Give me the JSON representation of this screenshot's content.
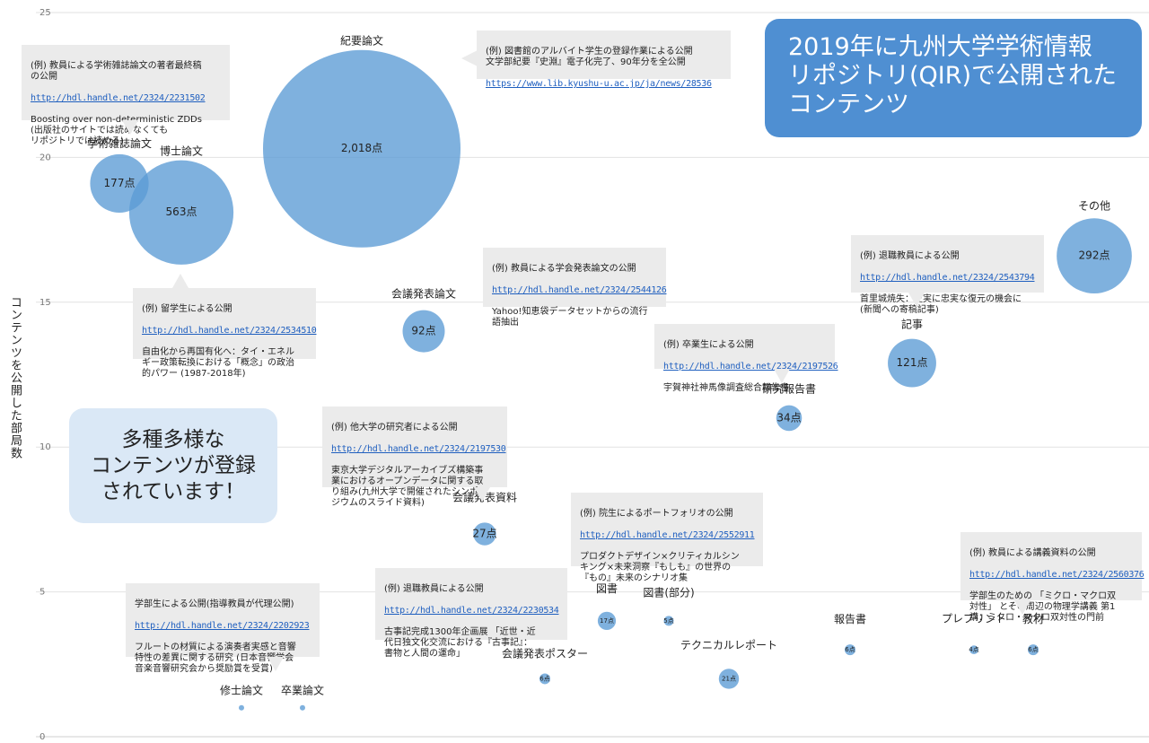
{
  "title": "2019年に九州大学学術情報\nリポジトリ(QIR)で公開された\nコンテンツ",
  "note": "多種多様な\nコンテンツが登録\nされています！",
  "chart_data": {
    "type": "bubble",
    "ylabel": "コンテンツを公開した部局数",
    "ylim": [
      0,
      25
    ],
    "yticks": [
      0,
      5,
      10,
      15,
      20,
      25
    ],
    "grid": true,
    "bubble_color": "#5b9bd5",
    "series": [
      {
        "category": "紀要論文",
        "y": 20.3,
        "count": 2018,
        "value_label": "2,018点"
      },
      {
        "category": "博士論文",
        "y": 18.1,
        "count": 563,
        "value_label": "563点"
      },
      {
        "category": "学術雑誌論文",
        "y": 19.1,
        "count": 177,
        "value_label": "177点"
      },
      {
        "category": "その他",
        "y": 16.6,
        "count": 292,
        "value_label": "292点"
      },
      {
        "category": "記事",
        "y": 12.9,
        "count": 121,
        "value_label": "121点"
      },
      {
        "category": "会議発表論文",
        "y": 14.0,
        "count": 92,
        "value_label": "92点"
      },
      {
        "category": "研究報告書",
        "y": 11.0,
        "count": 34,
        "value_label": "34点"
      },
      {
        "category": "会議発表資料",
        "y": 7.0,
        "count": 27,
        "value_label": "27点"
      },
      {
        "category": "テクニカルレポート",
        "y": 2.0,
        "count": 21,
        "value_label": "21点"
      },
      {
        "category": "図書",
        "y": 4.0,
        "count": 17,
        "value_label": "17点"
      },
      {
        "category": "図書(部分)",
        "y": 4.0,
        "count": 5,
        "value_label": "5点"
      },
      {
        "category": "報告書",
        "y": 3.0,
        "count": 6,
        "value_label": "6点"
      },
      {
        "category": "教材",
        "y": 3.0,
        "count": 6,
        "value_label": "6点"
      },
      {
        "category": "プレプリント",
        "y": 3.0,
        "count": 4,
        "value_label": "4点"
      },
      {
        "category": "会議発表ポスター",
        "y": 2.0,
        "count": 6,
        "value_label": "6点"
      },
      {
        "category": "修士論文",
        "y": 1.0,
        "count": 1,
        "value_label": ""
      },
      {
        "category": "卒業論文",
        "y": 1.0,
        "count": 1,
        "value_label": ""
      }
    ],
    "annotations": [
      {
        "head": "(例) 教員による学術雑誌論文の著者最終稿\nの公開",
        "url": "http://hdl.handle.net/2324/2231502",
        "text": "Boosting over non-deterministic ZDDs\n(出版社のサイトでは読めなくても\nリポジトリでは読める)"
      },
      {
        "head": "(例) 図書館のアルバイト学生の登録作業による公開\n文学部紀要『史淵』電子化完了、90年分を全公開",
        "url": "https://www.lib.kyushu-u.ac.jp/ja/news/28536",
        "text": ""
      },
      {
        "head": "(例) 留学生による公開",
        "url": "http://hdl.handle.net/2324/2534510",
        "text": "自由化から再国有化へ：タイ・エネル\nギー政策転換における「概念」の政治\n的パワー (1987-2018年)"
      },
      {
        "head": "(例) 教員による学会発表論文の公開",
        "url": "http://hdl.handle.net/2324/2544126",
        "text": "Yahoo!知恵袋データセットからの流行\n語抽出"
      },
      {
        "head": "(例) 退職教員による公開",
        "url": "http://hdl.handle.net/2324/2543794",
        "text": "首里城焼失：史実に忠実な復元の機会に\n(新聞への寄稿記事)"
      },
      {
        "head": "(例) 卒業生による公開",
        "url": "http://hdl.handle.net/2324/2197526",
        "text": "宇賀神社神馬像調査総合報告書"
      },
      {
        "head": "(例) 他大学の研究者による公開",
        "url": "http://hdl.handle.net/2324/2197530",
        "text": "東京大学デジタルアーカイブズ構築事\n業におけるオープンデータに関する取\nり組み(九州大学で開催されたシンポ\nジウムのスライド資料)"
      },
      {
        "head": "(例) 院生によるポートフォリオの公開",
        "url": "http://hdl.handle.net/2324/2552911",
        "text": "プロダクトデザイン×クリティカルシン\nキング×未来洞察『もしも』の世界の\n『もの』未来のシナリオ集"
      },
      {
        "head": "(例) 教員による講義資料の公開",
        "url": "http://hdl.handle.net/2324/2560376",
        "text": "学部生のための 「ミクロ・マクロ双\n対性」 とその周辺の物理学講義 第1\n講：ミクロ・マクロ双対性の門前"
      },
      {
        "head": "学部生による公開(指導教員が代理公開)",
        "url": "http://hdl.handle.net/2324/2202923",
        "text": "フルートの材質による演奏者実感と音響\n特性の差異に関する研究 (日本音響学会\n音楽音響研究会から奨励賞を受賞)"
      },
      {
        "head": "(例) 退職教員による公開",
        "url": "http://hdl.handle.net/2324/2230534",
        "text": "古事記完成1300年企画展 「近世・近\n代日独文化交流における『古事記』：\n書物と人間の運命」"
      }
    ]
  }
}
